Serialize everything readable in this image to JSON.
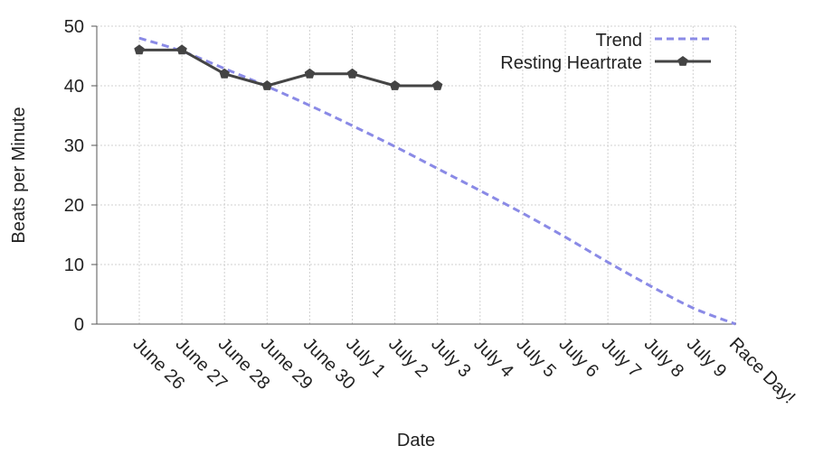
{
  "chart_data": {
    "type": "line",
    "title": "",
    "xlabel": "Date",
    "ylabel": "Beats per Minute",
    "categories": [
      "June 26",
      "June 27",
      "June 28",
      "June 29",
      "June 30",
      "July 1",
      "July 2",
      "July 3",
      "July 4",
      "July 5",
      "July 6",
      "July 7",
      "July 8",
      "July 9",
      "Race Day!"
    ],
    "ylim": [
      0,
      50
    ],
    "yticks": [
      0,
      10,
      20,
      30,
      40,
      50
    ],
    "grid": true,
    "legend_position": "top-right",
    "series": [
      {
        "name": "Trend",
        "style": "dashed",
        "color": "#8a8ae6",
        "values": [
          48,
          45.8,
          42.9,
          39.9,
          36.7,
          33.3,
          29.8,
          26.1,
          22.4,
          18.6,
          14.6,
          10.4,
          6.4,
          2.7,
          0
        ]
      },
      {
        "name": "Resting Heartrate",
        "style": "solid",
        "marker": "pentagon",
        "color": "#444444",
        "values": [
          46,
          46,
          42,
          40,
          42,
          42,
          40,
          40,
          null,
          null,
          null,
          null,
          null,
          null,
          null
        ]
      }
    ]
  }
}
